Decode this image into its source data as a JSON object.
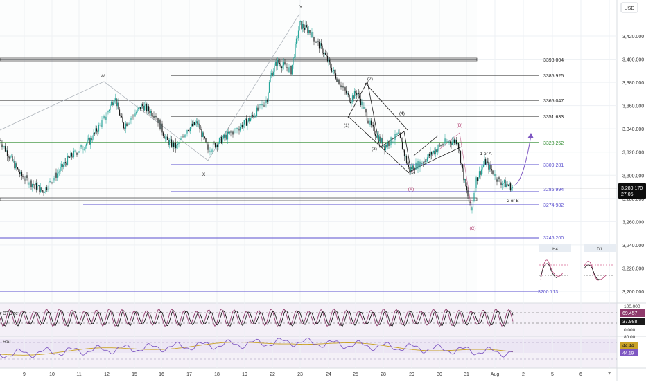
{
  "header": {
    "currency": "USD"
  },
  "price_scale": {
    "ticks": [
      "3,420.000",
      "3,400.000",
      "3,380.000",
      "3,360.000",
      "3,340.000",
      "3,320.000",
      "3,300.000",
      "3,280.000",
      "3,260.000",
      "3,240.000",
      "3,220.000",
      "3,200.000"
    ]
  },
  "last_price": {
    "value": "3,289.170",
    "countdown": "27:05"
  },
  "h_levels": [
    {
      "label": "3398.004",
      "color": "#1f1f1f"
    },
    {
      "label": "3385.925",
      "color": "#1f1f1f"
    },
    {
      "label": "3365.047",
      "color": "#1f1f1f"
    },
    {
      "label": "3351.633",
      "color": "#1f1f1f"
    },
    {
      "label": "3328.252",
      "color": "#2e8b2e"
    },
    {
      "label": "3309.281",
      "color": "#5a4fcf"
    },
    {
      "label": "3285.994",
      "color": "#5a4fcf"
    },
    {
      "label": "3274.982",
      "color": "#5a4fcf"
    },
    {
      "label": "3246.200",
      "color": "#5a4fcf"
    },
    {
      "label": "3200.713",
      "color": "#5a4fcf"
    }
  ],
  "wave_labels": [
    {
      "text": "W",
      "color": "#222222"
    },
    {
      "text": "X",
      "color": "#222222"
    },
    {
      "text": "Y",
      "color": "#222222"
    },
    {
      "text": "(1)",
      "color": "#222222"
    },
    {
      "text": "(2)",
      "color": "#222222"
    },
    {
      "text": "(3)",
      "color": "#222222"
    },
    {
      "text": "(4)",
      "color": "#222222"
    },
    {
      "text": "(5)",
      "color": "#222222"
    },
    {
      "text": "(A)",
      "color": "#b03a6e"
    },
    {
      "text": "(B)",
      "color": "#b03a6e"
    },
    {
      "text": "(C)",
      "color": "#b03a6e"
    },
    {
      "text": "1 or A",
      "color": "#222222"
    },
    {
      "text": "2 or B",
      "color": "#222222"
    }
  ],
  "mini_charts": [
    {
      "label": "H4"
    },
    {
      "label": "D1"
    }
  ],
  "dtosc": {
    "title": "DTOsc",
    "scale_ticks": [
      "100.000",
      "0.000"
    ],
    "value1": "69.457",
    "value2": "37.988",
    "color1": "#8e3a6b",
    "color2": "#1a1a1a"
  },
  "rsi": {
    "title": "RSI",
    "scale_ticks": [
      "80.00"
    ],
    "value1": "44.44",
    "value2": "44.19",
    "color1": "#c9a227",
    "color2": "#7e57c2"
  },
  "time_axis": [
    "9",
    "10",
    "11",
    "12",
    "15",
    "16",
    "17",
    "18",
    "19",
    "22",
    "23",
    "24",
    "25",
    "28",
    "29",
    "30",
    "31",
    "Aug",
    "2",
    "5",
    "6",
    "7"
  ],
  "colors": {
    "bull": "#26a69a",
    "bear": "#1a1a1a",
    "grid": "#eef1f4",
    "panel_bg": "#f4f0f7"
  },
  "chart_data": {
    "type": "candlestick",
    "symbol_quote": "USD",
    "y_range": [
      3186,
      3436
    ],
    "price_path": [
      {
        "x": "9",
        "y": 3330
      },
      {
        "x": "9.5",
        "y": 3300
      },
      {
        "x": "10",
        "y": 3286
      },
      {
        "x": "10.5",
        "y": 3315
      },
      {
        "x": "11",
        "y": 3330
      },
      {
        "x": "11.5",
        "y": 3350
      },
      {
        "x": "12",
        "y": 3368
      },
      {
        "x": "12.5",
        "y": 3342
      },
      {
        "x": "14",
        "y": 3360
      },
      {
        "x": "15",
        "y": 3352
      },
      {
        "x": "15.5",
        "y": 3330
      },
      {
        "x": "16",
        "y": 3324
      },
      {
        "x": "16.5",
        "y": 3340
      },
      {
        "x": "17",
        "y": 3345
      },
      {
        "x": "17.5",
        "y": 3322
      },
      {
        "x": "18",
        "y": 3335
      },
      {
        "x": "18.5",
        "y": 3348
      },
      {
        "x": "19",
        "y": 3358
      },
      {
        "x": "19.5",
        "y": 3365
      },
      {
        "x": "20",
        "y": 3385
      },
      {
        "x": "22",
        "y": 3398
      },
      {
        "x": "22.5",
        "y": 3390
      },
      {
        "x": "23",
        "y": 3430
      },
      {
        "x": "23.5",
        "y": 3425
      },
      {
        "x": "24",
        "y": 3408
      },
      {
        "x": "24.5",
        "y": 3390
      },
      {
        "x": "25",
        "y": 3365
      },
      {
        "x": "25.5",
        "y": 3372
      },
      {
        "x": "26",
        "y": 3342
      },
      {
        "x": "26.5",
        "y": 3325
      },
      {
        "x": "28",
        "y": 3335
      },
      {
        "x": "28.5",
        "y": 3315
      },
      {
        "x": "29",
        "y": 3305
      },
      {
        "x": "29.5",
        "y": 3312
      },
      {
        "x": "30",
        "y": 3328
      },
      {
        "x": "30.5",
        "y": 3330
      },
      {
        "x": "31",
        "y": 3295
      },
      {
        "x": "31.2",
        "y": 3268
      },
      {
        "x": "31.5",
        "y": 3295
      },
      {
        "x": "Aug",
        "y": 3312
      },
      {
        "x": "Aug+",
        "y": 3295
      },
      {
        "x": "Aug++",
        "y": 3289.17
      }
    ],
    "horizontal_levels": [
      3398.004,
      3385.925,
      3365.047,
      3351.633,
      3328.252,
      3309.281,
      3285.994,
      3274.982,
      3246.2,
      3200.713
    ],
    "last_price": 3289.17
  }
}
